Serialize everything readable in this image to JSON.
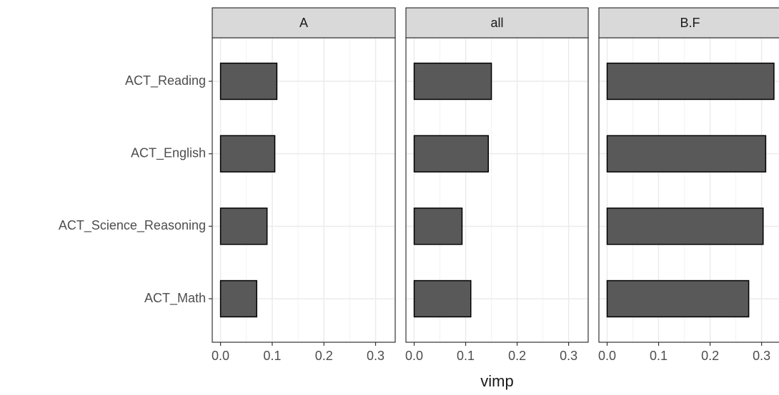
{
  "chart_data": {
    "type": "bar",
    "orientation": "horizontal",
    "categories": [
      "ACT_Reading",
      "ACT_English",
      "ACT_Science_Reasoning",
      "ACT_Math"
    ],
    "xlabel": "vimp",
    "xlim": [
      -0.016,
      0.338
    ],
    "xticks": [
      {
        "value": 0,
        "label": "0.0"
      },
      {
        "value": 0.1,
        "label": "0.1"
      },
      {
        "value": 0.2,
        "label": "0.2"
      },
      {
        "value": 0.3,
        "label": "0.3"
      }
    ],
    "grid": true,
    "color": "#595959",
    "facets": [
      {
        "title": "A",
        "values": [
          0.109,
          0.105,
          0.09,
          0.07
        ]
      },
      {
        "title": "all",
        "values": [
          0.15,
          0.144,
          0.093,
          0.11
        ]
      },
      {
        "title": "B.F",
        "values": [
          0.324,
          0.308,
          0.303,
          0.275
        ]
      }
    ]
  }
}
